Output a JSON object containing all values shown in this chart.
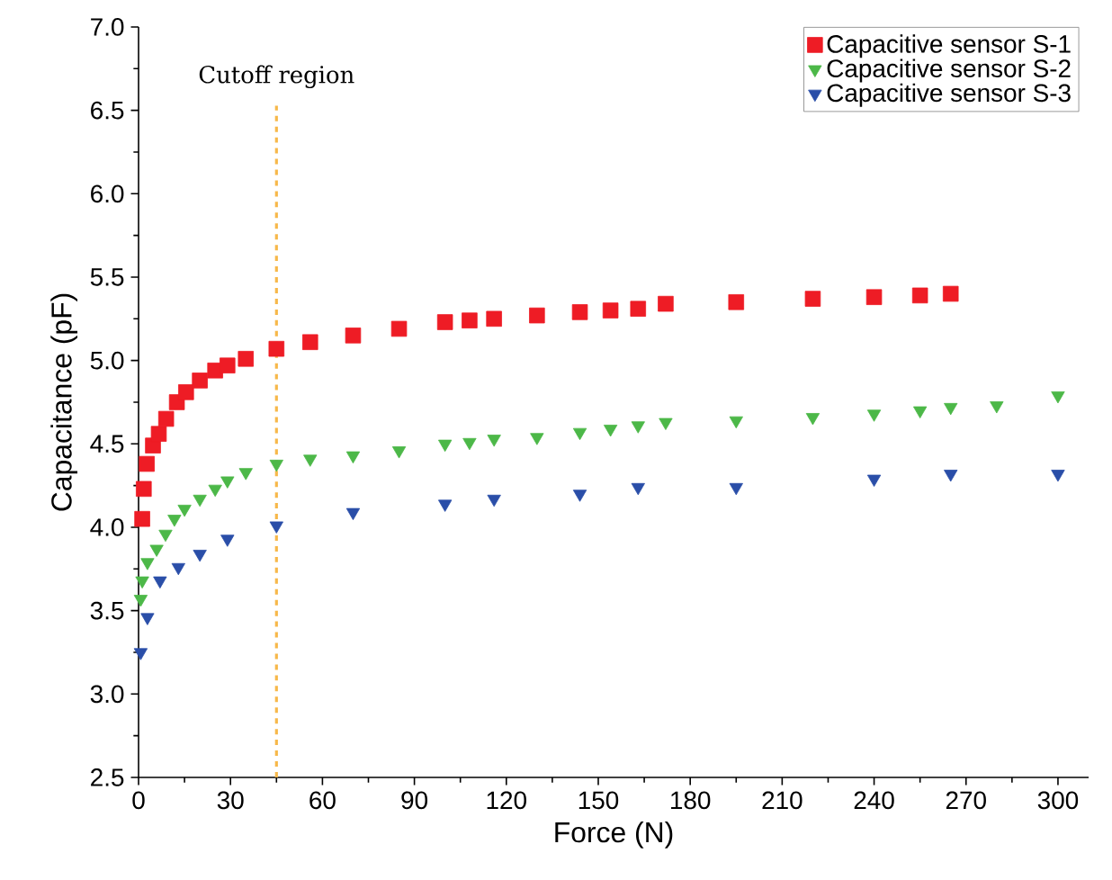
{
  "chart_data": {
    "type": "scatter",
    "xlabel": "Force (N)",
    "ylabel": "Capacitance (pF)",
    "xlim": [
      0,
      310
    ],
    "ylim": [
      2.5,
      7.0
    ],
    "xticks": [
      0,
      30,
      60,
      90,
      120,
      150,
      180,
      210,
      240,
      270,
      300
    ],
    "yticks": [
      {
        "value": 2.5,
        "label": "2.5"
      },
      {
        "value": 3.0,
        "label": "3.0"
      },
      {
        "value": 3.5,
        "label": "3.5"
      },
      {
        "value": 4.0,
        "label": "4.0"
      },
      {
        "value": 4.5,
        "label": "4.5"
      },
      {
        "value": 5.0,
        "label": "5.0"
      },
      {
        "value": 5.5,
        "label": "5.5"
      },
      {
        "value": 6.0,
        "label": "6.0"
      },
      {
        "value": 6.5,
        "label": "6.5"
      },
      {
        "value": 7.0,
        "label": "7.0"
      }
    ],
    "legend": "top right",
    "grid": false,
    "ref_lines": [
      {
        "axis": "x",
        "value": 45,
        "label": "Cutoff region",
        "color": "#f7b84a",
        "line_style": "dashed"
      }
    ],
    "series": [
      {
        "name": "Capacitive sensor  S-1",
        "color": "#ee1c25",
        "marker": "square",
        "x": [
          1.2,
          1.7,
          2.7,
          4.7,
          6.6,
          9,
          12.5,
          15.5,
          20,
          25,
          29,
          35,
          45,
          56,
          70,
          85,
          100,
          108,
          116,
          130,
          144,
          154,
          163,
          172,
          195,
          220,
          240,
          255,
          265
        ],
        "values": [
          4.05,
          4.23,
          4.38,
          4.49,
          4.56,
          4.65,
          4.75,
          4.81,
          4.88,
          4.94,
          4.97,
          5.01,
          5.07,
          5.11,
          5.15,
          5.19,
          5.23,
          5.24,
          5.25,
          5.27,
          5.29,
          5.3,
          5.31,
          5.34,
          5.35,
          5.37,
          5.38,
          5.39,
          5.4
        ]
      },
      {
        "name": "Capacitive sensor  S-2",
        "color": "#4cb848",
        "marker": "triangle",
        "x": [
          0.7,
          1.2,
          2.9,
          5.9,
          8.8,
          11.7,
          15,
          20,
          25,
          29,
          35,
          45,
          56,
          70,
          85,
          100,
          108,
          116,
          130,
          144,
          154,
          163,
          172,
          195,
          220,
          240,
          255,
          265,
          280,
          300
        ],
        "values": [
          3.57,
          3.68,
          3.79,
          3.87,
          3.96,
          4.05,
          4.11,
          4.17,
          4.23,
          4.28,
          4.33,
          4.38,
          4.41,
          4.43,
          4.46,
          4.5,
          4.51,
          4.53,
          4.54,
          4.57,
          4.59,
          4.61,
          4.63,
          4.64,
          4.66,
          4.68,
          4.7,
          4.72,
          4.73,
          4.79
        ]
      },
      {
        "name": "Capacitive sensor  S-3",
        "color": "#2a4ea8",
        "marker": "triangle",
        "x": [
          0.7,
          2.9,
          7,
          13,
          20,
          29,
          45,
          70,
          100,
          116,
          144,
          163,
          195,
          240,
          265,
          300
        ],
        "values": [
          3.25,
          3.46,
          3.68,
          3.76,
          3.84,
          3.93,
          4.01,
          4.09,
          4.14,
          4.17,
          4.2,
          4.24,
          4.24,
          4.29,
          4.32,
          4.32
        ]
      }
    ]
  }
}
